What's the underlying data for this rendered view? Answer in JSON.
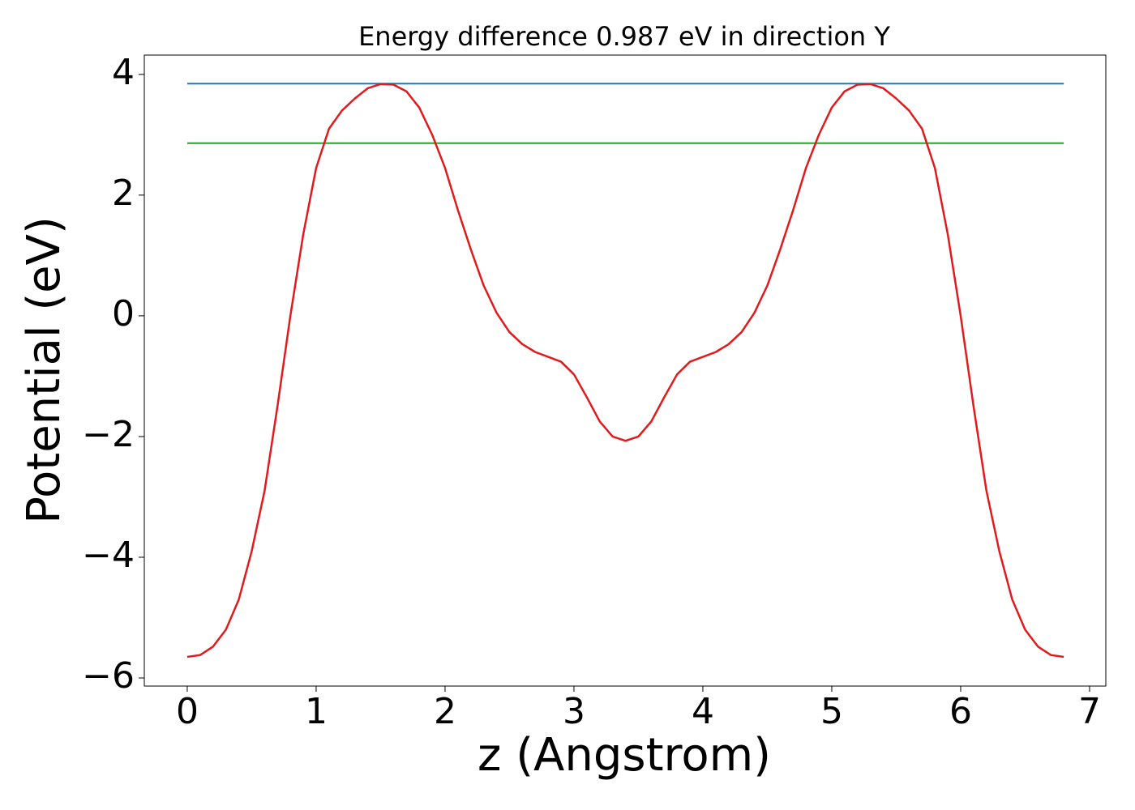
{
  "chart_data": {
    "type": "line",
    "title": "Energy difference 0.987 eV in direction Y",
    "xlabel": "z (Angstrom)",
    "ylabel": "Potential (eV)",
    "xlim": [
      -0.333,
      7.126
    ],
    "ylim": [
      -6.134,
      4.32
    ],
    "xticks": [
      0,
      1,
      2,
      3,
      4,
      5,
      6,
      7
    ],
    "yticks": [
      {
        "value": -6,
        "label": "−6"
      },
      {
        "value": -4,
        "label": "−4"
      },
      {
        "value": -2,
        "label": "−2"
      },
      0,
      2,
      4
    ],
    "grid": false,
    "series": [
      {
        "color": "#1f77b4",
        "x": [
          0,
          6.8
        ],
        "values": [
          3.847,
          3.847
        ]
      },
      {
        "color": "#2ca02c",
        "x": [
          0,
          6.8
        ],
        "values": [
          2.86,
          2.86
        ]
      },
      {
        "color": "#e31a1c",
        "x": [
          0,
          0.1,
          0.2,
          0.3,
          0.4,
          0.5,
          0.6,
          0.7,
          0.8,
          0.9,
          1.0,
          1.1,
          1.2,
          1.3,
          1.4,
          1.5,
          1.6,
          1.7,
          1.8,
          1.9,
          2.0,
          2.1,
          2.2,
          2.3,
          2.4,
          2.5,
          2.6,
          2.7,
          2.8,
          2.9,
          3.0,
          3.1,
          3.2,
          3.3,
          3.4,
          3.5,
          3.6,
          3.7,
          3.8,
          3.9,
          4.0,
          4.1,
          4.2,
          4.3,
          4.4,
          4.5,
          4.6,
          4.7,
          4.8,
          4.9,
          5.0,
          5.1,
          5.2,
          5.3,
          5.4,
          5.5,
          5.6,
          5.7,
          5.8,
          5.9,
          6.0,
          6.1,
          6.2,
          6.3,
          6.4,
          6.5,
          6.6,
          6.7,
          6.8
        ],
        "values": [
          -5.65,
          -5.62,
          -5.48,
          -5.2,
          -4.7,
          -3.9,
          -2.9,
          -1.5,
          0.0,
          1.35,
          2.45,
          3.1,
          3.4,
          3.6,
          3.77,
          3.84,
          3.83,
          3.72,
          3.45,
          3.0,
          2.45,
          1.75,
          1.1,
          0.5,
          0.05,
          -0.27,
          -0.47,
          -0.6,
          -0.68,
          -0.76,
          -0.97,
          -1.35,
          -1.75,
          -2.0,
          -2.07,
          -2.0,
          -1.75,
          -1.35,
          -0.97,
          -0.76,
          -0.68,
          -0.6,
          -0.47,
          -0.27,
          0.05,
          0.5,
          1.1,
          1.75,
          2.45,
          3.0,
          3.45,
          3.72,
          3.83,
          3.84,
          3.77,
          3.6,
          3.4,
          3.1,
          2.45,
          1.35,
          0.0,
          -1.5,
          -2.9,
          -3.9,
          -4.7,
          -5.2,
          -5.48,
          -5.62,
          -5.65
        ]
      }
    ]
  }
}
